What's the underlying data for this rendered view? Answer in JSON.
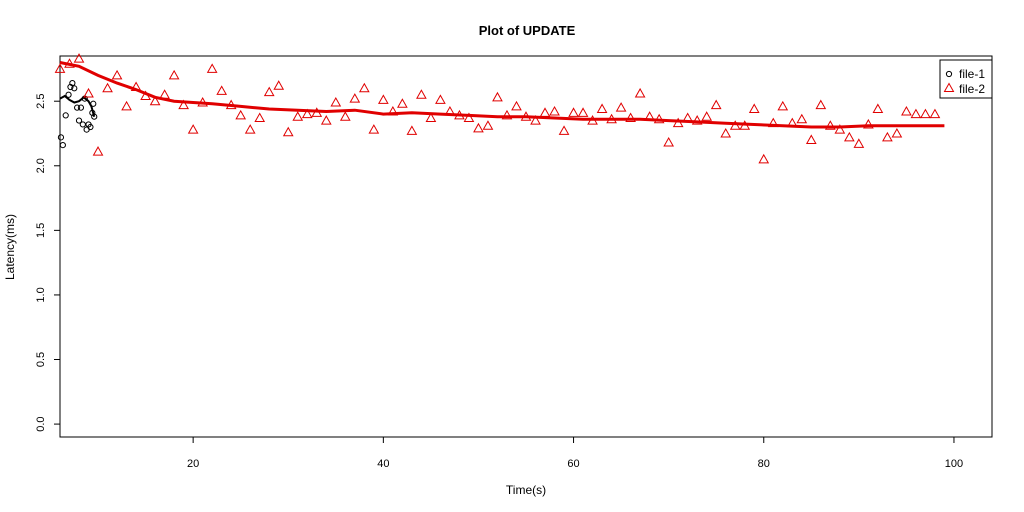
{
  "chart_data": {
    "type": "scatter",
    "title": "Plot of UPDATE",
    "xlabel": "Time(s)",
    "ylabel": "Latency(ms)",
    "xlim": [
      6,
      104
    ],
    "ylim": [
      -0.1,
      2.85
    ],
    "xticks": [
      20,
      40,
      60,
      80,
      100
    ],
    "yticks": [
      0.0,
      0.5,
      1.0,
      1.5,
      2.0,
      2.5
    ],
    "ytick_labels": [
      "0.0",
      "0.5",
      "1.0",
      "1.5",
      "2.0",
      "2.5"
    ],
    "legend_position": "top-right",
    "series": [
      {
        "name": "file-1",
        "marker": "circle",
        "color": "#000000",
        "points": [
          [
            6.1,
            2.22
          ],
          [
            6.3,
            2.16
          ],
          [
            6.6,
            2.39
          ],
          [
            6.9,
            2.55
          ],
          [
            7.1,
            2.61
          ],
          [
            7.3,
            2.64
          ],
          [
            7.5,
            2.6
          ],
          [
            7.8,
            2.45
          ],
          [
            8.0,
            2.35
          ],
          [
            8.2,
            2.45
          ],
          [
            8.4,
            2.32
          ],
          [
            8.6,
            2.52
          ],
          [
            8.8,
            2.28
          ],
          [
            9.0,
            2.32
          ],
          [
            9.2,
            2.3
          ],
          [
            9.4,
            2.41
          ],
          [
            9.5,
            2.48
          ],
          [
            9.6,
            2.38
          ]
        ],
        "smooth": [
          [
            6.0,
            2.52
          ],
          [
            6.5,
            2.54
          ],
          [
            7.0,
            2.51
          ],
          [
            7.5,
            2.49
          ],
          [
            8.0,
            2.5
          ],
          [
            8.5,
            2.53
          ],
          [
            9.0,
            2.5
          ],
          [
            9.3,
            2.46
          ],
          [
            9.6,
            2.38
          ]
        ]
      },
      {
        "name": "file-2",
        "marker": "triangle",
        "color": "#e00000",
        "points": [
          [
            6,
            2.75
          ],
          [
            7,
            2.79
          ],
          [
            8,
            2.83
          ],
          [
            9,
            2.56
          ],
          [
            10,
            2.11
          ],
          [
            11,
            2.6
          ],
          [
            12,
            2.7
          ],
          [
            13,
            2.46
          ],
          [
            14,
            2.61
          ],
          [
            15,
            2.54
          ],
          [
            16,
            2.5
          ],
          [
            17,
            2.55
          ],
          [
            18,
            2.7
          ],
          [
            19,
            2.47
          ],
          [
            20,
            2.28
          ],
          [
            21,
            2.49
          ],
          [
            22,
            2.75
          ],
          [
            23,
            2.58
          ],
          [
            24,
            2.47
          ],
          [
            25,
            2.39
          ],
          [
            26,
            2.28
          ],
          [
            27,
            2.37
          ],
          [
            28,
            2.57
          ],
          [
            29,
            2.62
          ],
          [
            30,
            2.26
          ],
          [
            31,
            2.38
          ],
          [
            32,
            2.4
          ],
          [
            33,
            2.41
          ],
          [
            34,
            2.35
          ],
          [
            35,
            2.49
          ],
          [
            36,
            2.38
          ],
          [
            37,
            2.52
          ],
          [
            38,
            2.6
          ],
          [
            39,
            2.28
          ],
          [
            40,
            2.51
          ],
          [
            41,
            2.42
          ],
          [
            42,
            2.48
          ],
          [
            43,
            2.27
          ],
          [
            44,
            2.55
          ],
          [
            45,
            2.37
          ],
          [
            46,
            2.51
          ],
          [
            47,
            2.42
          ],
          [
            48,
            2.39
          ],
          [
            49,
            2.37
          ],
          [
            50,
            2.29
          ],
          [
            51,
            2.31
          ],
          [
            52,
            2.53
          ],
          [
            53,
            2.39
          ],
          [
            54,
            2.46
          ],
          [
            55,
            2.38
          ],
          [
            56,
            2.35
          ],
          [
            57,
            2.41
          ],
          [
            58,
            2.42
          ],
          [
            59,
            2.27
          ],
          [
            60,
            2.41
          ],
          [
            61,
            2.41
          ],
          [
            62,
            2.35
          ],
          [
            63,
            2.44
          ],
          [
            64,
            2.36
          ],
          [
            65,
            2.45
          ],
          [
            66,
            2.37
          ],
          [
            67,
            2.56
          ],
          [
            68,
            2.38
          ],
          [
            69,
            2.36
          ],
          [
            70,
            2.18
          ],
          [
            71,
            2.33
          ],
          [
            72,
            2.37
          ],
          [
            73,
            2.35
          ],
          [
            74,
            2.38
          ],
          [
            75,
            2.47
          ],
          [
            76,
            2.25
          ],
          [
            77,
            2.31
          ],
          [
            78,
            2.31
          ],
          [
            79,
            2.44
          ],
          [
            80,
            2.05
          ],
          [
            81,
            2.33
          ],
          [
            82,
            2.46
          ],
          [
            83,
            2.33
          ],
          [
            84,
            2.36
          ],
          [
            85,
            2.2
          ],
          [
            86,
            2.47
          ],
          [
            87,
            2.31
          ],
          [
            88,
            2.28
          ],
          [
            89,
            2.22
          ],
          [
            90,
            2.17
          ],
          [
            91,
            2.32
          ],
          [
            92,
            2.44
          ],
          [
            93,
            2.22
          ],
          [
            94,
            2.25
          ],
          [
            95,
            2.42
          ],
          [
            96,
            2.4
          ],
          [
            97,
            2.4
          ],
          [
            98,
            2.4
          ]
        ],
        "smooth": [
          [
            6,
            2.8
          ],
          [
            8,
            2.77
          ],
          [
            10,
            2.7
          ],
          [
            12,
            2.64
          ],
          [
            14,
            2.59
          ],
          [
            16,
            2.53
          ],
          [
            18,
            2.5
          ],
          [
            20,
            2.49
          ],
          [
            22,
            2.48
          ],
          [
            25,
            2.46
          ],
          [
            28,
            2.44
          ],
          [
            31,
            2.43
          ],
          [
            34,
            2.42
          ],
          [
            37,
            2.43
          ],
          [
            40,
            2.4
          ],
          [
            43,
            2.41
          ],
          [
            46,
            2.4
          ],
          [
            49,
            2.39
          ],
          [
            52,
            2.38
          ],
          [
            55,
            2.38
          ],
          [
            58,
            2.37
          ],
          [
            61,
            2.36
          ],
          [
            64,
            2.36
          ],
          [
            67,
            2.36
          ],
          [
            70,
            2.35
          ],
          [
            73,
            2.34
          ],
          [
            76,
            2.33
          ],
          [
            79,
            2.32
          ],
          [
            82,
            2.31
          ],
          [
            85,
            2.3
          ],
          [
            88,
            2.3
          ],
          [
            91,
            2.31
          ],
          [
            94,
            2.31
          ],
          [
            97,
            2.31
          ],
          [
            99,
            2.31
          ]
        ]
      }
    ]
  }
}
